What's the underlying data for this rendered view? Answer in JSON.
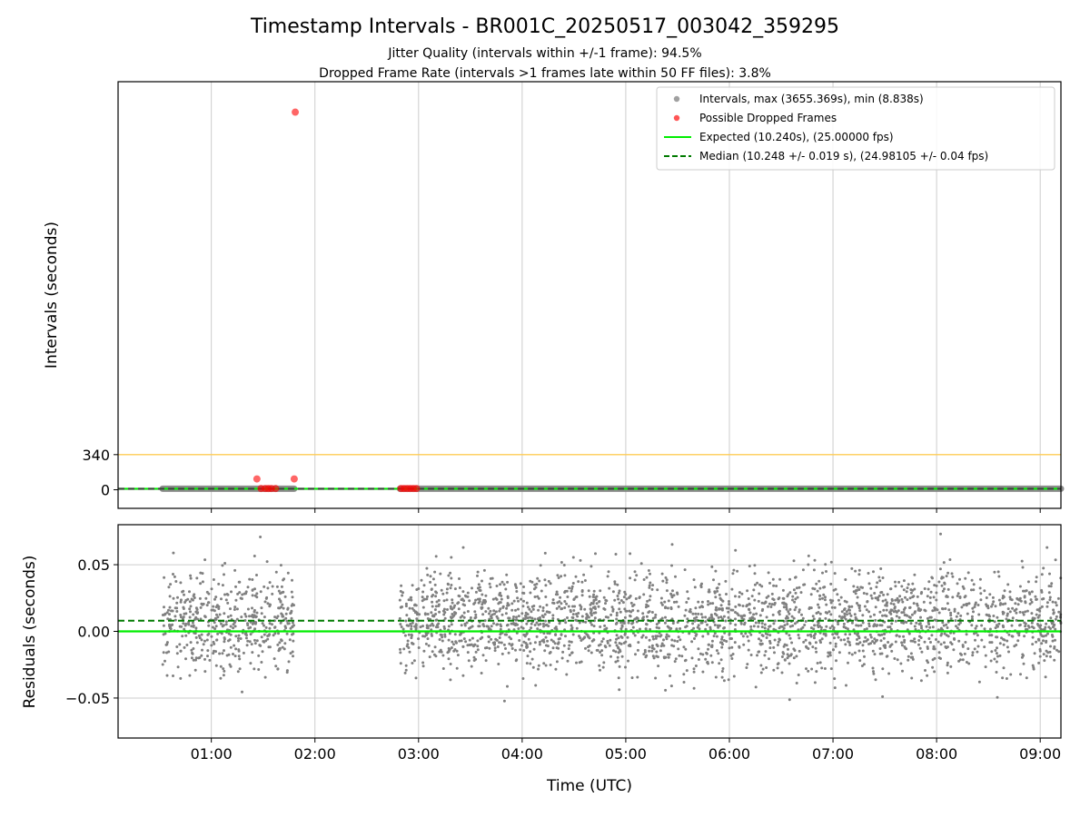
{
  "chart_data": {
    "title": "Timestamp Intervals - BR001C_20250517_003042_359295",
    "subtitles": [
      "Jitter Quality (intervals within +/-1 frame): 94.5%",
      "Dropped Frame Rate (intervals >1 frames late within 50 FF files): 3.8%"
    ],
    "xlabel": "Time (UTC)",
    "x_ticks": [
      "01:00",
      "02:00",
      "03:00",
      "04:00",
      "05:00",
      "06:00",
      "07:00",
      "08:00",
      "09:00"
    ],
    "x_tick_hours": [
      1,
      2,
      3,
      4,
      5,
      6,
      7,
      8,
      9
    ],
    "xlim_hours": [
      0.1,
      9.2
    ],
    "grid": true,
    "colors": {
      "intervals": "#808080",
      "dropped": "#ff0000",
      "expected": "#00ee00",
      "median": "#007a00",
      "threshold": "#ffcc55"
    },
    "top_panel": {
      "type": "scatter",
      "ylabel": "Intervals (seconds)",
      "y_ticks": [
        0,
        340
      ],
      "ylim": [
        -180,
        3950
      ],
      "threshold_line": 340,
      "expected_value": 10.24,
      "median_value": 10.248,
      "interval_segments_hours": [
        [
          0.53,
          1.8
        ],
        [
          2.82,
          9.2
        ]
      ],
      "dropped_frames": [
        {
          "hour": 1.44,
          "value": 105
        },
        {
          "hour": 1.48,
          "value": 12
        },
        {
          "hour": 1.52,
          "value": 12
        },
        {
          "hour": 1.55,
          "value": 12
        },
        {
          "hour": 1.58,
          "value": 12
        },
        {
          "hour": 1.62,
          "value": 12
        },
        {
          "hour": 1.8,
          "value": 105
        },
        {
          "hour": 1.81,
          "value": 3655.369
        },
        {
          "hour": 2.83,
          "value": 12
        },
        {
          "hour": 2.86,
          "value": 12
        },
        {
          "hour": 2.89,
          "value": 12
        },
        {
          "hour": 2.92,
          "value": 12
        },
        {
          "hour": 2.95,
          "value": 12
        },
        {
          "hour": 2.98,
          "value": 12
        }
      ],
      "legend": {
        "position": "top-right",
        "entries": [
          {
            "label": "Intervals, max (3655.369s), min (8.838s)",
            "kind": "dot",
            "color": "#a0a0a0"
          },
          {
            "label": "Possible Dropped Frames",
            "kind": "dot",
            "color": "#ff5555"
          },
          {
            "label": "Expected (10.240s), (25.00000 fps)",
            "kind": "line",
            "color": "#00ee00"
          },
          {
            "label": "Median (10.248 +/- 0.019 s), (24.98105 +/- 0.04 fps)",
            "kind": "dash",
            "color": "#007a00"
          }
        ]
      }
    },
    "bottom_panel": {
      "type": "scatter",
      "ylabel": "Residuals (seconds)",
      "y_ticks": [
        0.05,
        0.0,
        -0.05
      ],
      "y_tick_labels": [
        "0.05",
        "0.00",
        "−0.05"
      ],
      "ylim": [
        -0.08,
        0.08
      ],
      "expected_value": 0.0,
      "median_value": 0.008,
      "residual_segments_hours": [
        [
          0.53,
          1.8
        ],
        [
          2.82,
          9.2
        ]
      ],
      "residual_count": 3020,
      "residual_std": 0.019
    }
  }
}
